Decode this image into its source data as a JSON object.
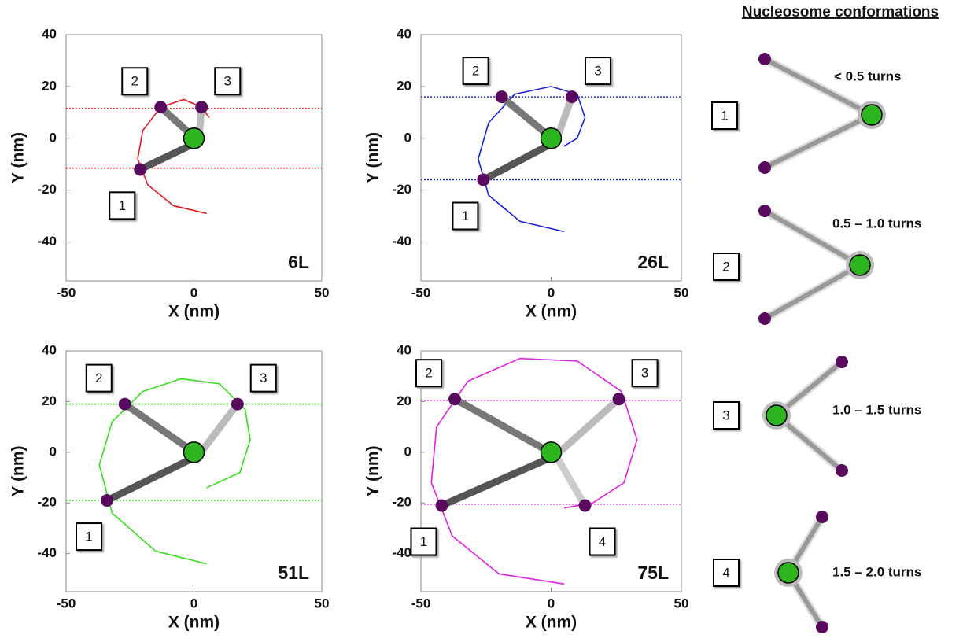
{
  "chart_data": [
    {
      "type": "line",
      "corner_label": "6L",
      "xlabel": "X (nm)",
      "ylabel": "Y (nm)",
      "color": "#e8141c",
      "xlim": [
        -50,
        50
      ],
      "ylim": [
        -55,
        40
      ],
      "xticks": [
        -50,
        0,
        50
      ],
      "yticks": [
        -40,
        -20,
        0,
        20,
        40
      ],
      "guides": [
        11.5,
        -11.5
      ],
      "center": {
        "x": 0,
        "y": 0
      },
      "curve": {
        "x": [
          5,
          -8,
          -18,
          -22,
          -20,
          -13,
          -4,
          3,
          6
        ],
        "y": [
          -29,
          -26,
          -18,
          -8,
          3,
          12,
          15,
          12,
          8
        ]
      },
      "points": [
        {
          "label": "1",
          "x": -21,
          "y": -12
        },
        {
          "label": "2",
          "x": -13,
          "y": 12
        },
        {
          "label": "3",
          "x": 3,
          "y": 12
        }
      ]
    },
    {
      "type": "line",
      "corner_label": "26L",
      "xlabel": "X (nm)",
      "ylabel": "Y (nm)",
      "color": "#1a22d6",
      "xlim": [
        -50,
        50
      ],
      "ylim": [
        -55,
        40
      ],
      "xticks": [
        -50,
        0,
        50
      ],
      "yticks": [
        -40,
        -20,
        0,
        20,
        40
      ],
      "guides": [
        16,
        -16
      ],
      "center": {
        "x": 0,
        "y": 0
      },
      "curve": {
        "x": [
          5,
          -12,
          -24,
          -28,
          -24,
          -14,
          0,
          10,
          13,
          10,
          5
        ],
        "y": [
          -36,
          -32,
          -22,
          -8,
          6,
          17,
          20,
          17,
          8,
          0,
          -3
        ]
      },
      "points": [
        {
          "label": "1",
          "x": -26,
          "y": -16
        },
        {
          "label": "2",
          "x": -19,
          "y": 16
        },
        {
          "label": "3",
          "x": 8,
          "y": 16
        }
      ]
    },
    {
      "type": "line",
      "corner_label": "51L",
      "xlabel": "X (nm)",
      "ylabel": "Y (nm)",
      "color": "#33e01a",
      "xlim": [
        -50,
        50
      ],
      "ylim": [
        -55,
        40
      ],
      "xticks": [
        -50,
        0,
        50
      ],
      "yticks": [
        -40,
        -20,
        0,
        20,
        40
      ],
      "guides": [
        19,
        -19
      ],
      "center": {
        "x": 0,
        "y": 0
      },
      "curve": {
        "x": [
          5,
          -15,
          -32,
          -37,
          -32,
          -20,
          -5,
          10,
          20,
          22,
          18,
          5
        ],
        "y": [
          -44,
          -39,
          -24,
          -5,
          12,
          24,
          29,
          27,
          17,
          5,
          -8,
          -14
        ]
      },
      "points": [
        {
          "label": "1",
          "x": -34,
          "y": -19
        },
        {
          "label": "2",
          "x": -27,
          "y": 19
        },
        {
          "label": "3",
          "x": 17,
          "y": 19
        }
      ]
    },
    {
      "type": "line",
      "corner_label": "75L",
      "xlabel": "X (nm)",
      "ylabel": "Y (nm)",
      "color": "#e61ee6",
      "xlim": [
        -50,
        50
      ],
      "ylim": [
        -55,
        40
      ],
      "xticks": [
        -50,
        0,
        50
      ],
      "yticks": [
        -40,
        -20,
        0,
        20,
        40
      ],
      "guides": [
        20.5,
        -20.5
      ],
      "center": {
        "x": 0,
        "y": 0
      },
      "curve": {
        "x": [
          5,
          -20,
          -38,
          -46,
          -44,
          -32,
          -12,
          10,
          27,
          33,
          28,
          16,
          5
        ],
        "y": [
          -52,
          -48,
          -33,
          -12,
          10,
          28,
          37,
          36,
          24,
          5,
          -12,
          -20,
          -22
        ]
      },
      "points": [
        {
          "label": "1",
          "x": -42,
          "y": -21
        },
        {
          "label": "2",
          "x": -37,
          "y": 21
        },
        {
          "label": "3",
          "x": 26,
          "y": 21
        },
        {
          "label": "4",
          "x": 13,
          "y": -21
        }
      ]
    }
  ],
  "conformations": {
    "title": "Nucleosome conformations",
    "items": [
      {
        "label": "1",
        "text": "< 0.5 turns"
      },
      {
        "label": "2",
        "text": "0.5 – 1.0 turns"
      },
      {
        "label": "3",
        "text": "1.0 – 1.5 turns"
      },
      {
        "label": "4",
        "text": "1.5 – 2.0 turns"
      }
    ]
  }
}
